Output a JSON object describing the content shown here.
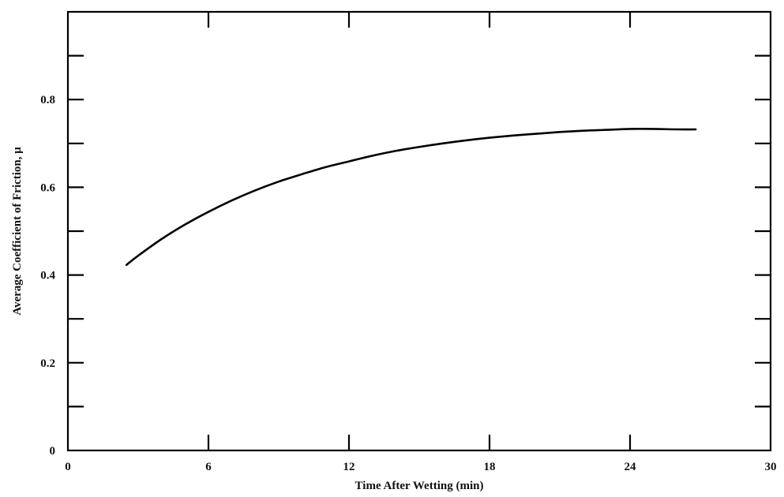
{
  "chart_data": {
    "type": "line",
    "title": "",
    "xlabel": "Time After Wetting (min)",
    "ylabel": "Average Coefficient of Friction, μ",
    "xlim": [
      0,
      30
    ],
    "ylim": [
      0,
      1.0
    ],
    "x_ticks": [
      0,
      6,
      12,
      18,
      24,
      30
    ],
    "x_tick_labels": [
      "0",
      "6",
      "12",
      "18",
      "24",
      "30"
    ],
    "y_ticks": [
      0,
      0.2,
      0.4,
      0.6,
      0.8
    ],
    "y_tick_labels": [
      "0",
      "0.2",
      "0.4",
      "0.6",
      "0.8"
    ],
    "y_minor_ticks": [
      0.1,
      0.3,
      0.5,
      0.7,
      0.9
    ],
    "grid": false,
    "series": [
      {
        "x": [
          2.5,
          3.0,
          4.0,
          5.0,
          6.0,
          7.0,
          8.0,
          9.0,
          10.0,
          11.0,
          12.0,
          13.0,
          14.0,
          15.0,
          16.0,
          17.0,
          18.0,
          19.0,
          20.0,
          21.0,
          22.0,
          23.0,
          24.0,
          25.0,
          26.0,
          26.8
        ],
        "y": [
          0.423,
          0.444,
          0.482,
          0.515,
          0.544,
          0.57,
          0.593,
          0.613,
          0.63,
          0.646,
          0.659,
          0.672,
          0.683,
          0.692,
          0.7,
          0.707,
          0.713,
          0.718,
          0.722,
          0.726,
          0.729,
          0.731,
          0.733,
          0.733,
          0.732,
          0.732
        ]
      }
    ],
    "color": "#000000"
  }
}
